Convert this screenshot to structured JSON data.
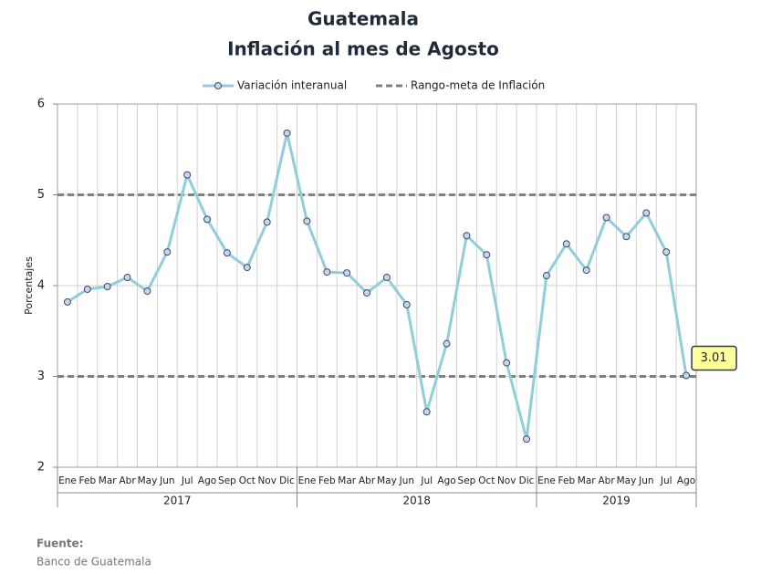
{
  "chart_data": {
    "type": "line",
    "title": "Guatemala",
    "subtitle": "Inflación al mes de Agosto",
    "y_label": "Porcentajes",
    "categories": [
      "Ene",
      "Feb",
      "Mar",
      "Abr",
      "May",
      "Jun",
      "Jul",
      "Ago",
      "Sep",
      "Oct",
      "Nov",
      "Dic",
      "Ene",
      "Feb",
      "Mar",
      "Abr",
      "May",
      "Jun",
      "Jul",
      "Ago",
      "Sep",
      "Oct",
      "Nov",
      "Dic",
      "Ene",
      "Feb",
      "Mar",
      "Abr",
      "May",
      "Jun",
      "Jul",
      "Ago"
    ],
    "years": [
      "2017",
      "2018",
      "2019"
    ],
    "series": [
      {
        "name": "Variación interanual",
        "color": "#92cddc",
        "values": [
          3.82,
          3.96,
          3.99,
          4.09,
          3.94,
          4.37,
          5.22,
          4.73,
          4.36,
          4.2,
          4.7,
          5.68,
          4.71,
          4.15,
          4.14,
          3.92,
          4.09,
          3.79,
          2.61,
          3.36,
          4.55,
          4.34,
          3.15,
          2.31,
          4.11,
          4.46,
          4.17,
          4.75,
          4.54,
          4.8,
          4.37,
          3.01
        ],
        "value_labels": [
          null,
          null,
          null,
          null,
          null,
          null,
          null,
          null,
          null,
          null,
          null,
          null,
          null,
          null,
          null,
          null,
          null,
          null,
          null,
          null,
          null,
          null,
          null,
          null,
          null,
          null,
          null,
          null,
          null,
          null,
          null,
          "3.01"
        ]
      }
    ],
    "reference": {
      "name": "Rango-meta de Inflación",
      "color": "#808080",
      "values": [
        3,
        5
      ]
    },
    "ylim": [
      2,
      6
    ],
    "yticks": [
      2,
      3,
      4,
      5,
      6
    ],
    "grid": true,
    "source_label": "Fuente:",
    "source": "Banco de Guatemala"
  }
}
